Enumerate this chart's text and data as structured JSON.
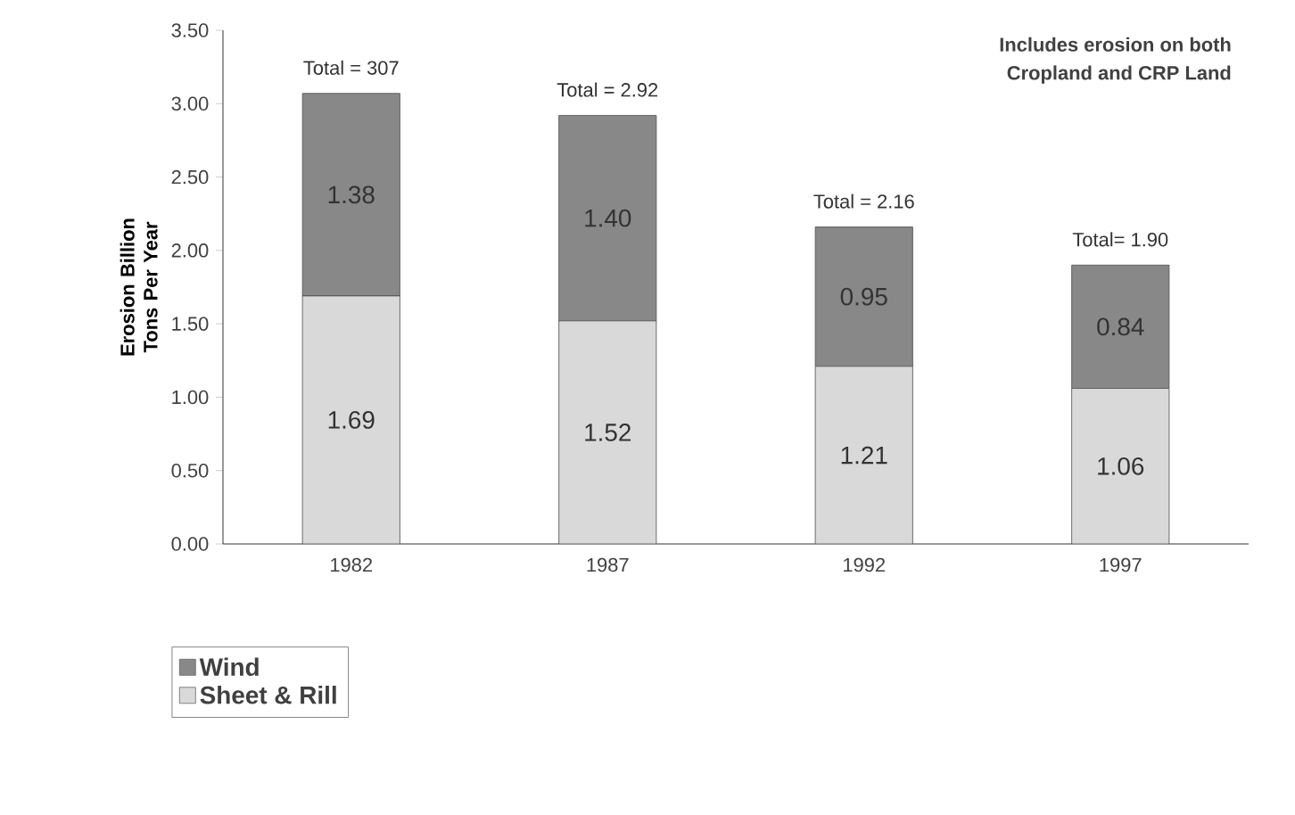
{
  "chart_data": {
    "type": "bar",
    "stacked": true,
    "ylabel": "Erosion Billion Tons Per Year",
    "categories": [
      "1982",
      "1987",
      "1992",
      "1997"
    ],
    "series": [
      {
        "name": "Sheet & Rill",
        "color": "#d9d9d9",
        "values": [
          1.69,
          1.52,
          1.21,
          1.06
        ],
        "value_labels": [
          "1.69",
          "1.52",
          "1.21",
          "1.06"
        ]
      },
      {
        "name": "Wind",
        "color": "#888888",
        "values": [
          1.38,
          1.4,
          0.95,
          0.84
        ],
        "value_labels": [
          "1.38",
          "1.40",
          "0.95",
          "0.84"
        ]
      }
    ],
    "totals": [
      "Total = 307",
      "Total = 2.92",
      "Total = 2.16",
      "Total= 1.90"
    ],
    "ylim": [
      0,
      3.5
    ],
    "yticks": [
      {
        "value": 0,
        "label": "0.00"
      },
      {
        "value": 0.5,
        "label": "0.50"
      },
      {
        "value": 1,
        "label": "1.00"
      },
      {
        "value": 1.5,
        "label": "1.50"
      },
      {
        "value": 2,
        "label": "2.00"
      },
      {
        "value": 2.5,
        "label": "2.50"
      },
      {
        "value": 3,
        "label": "3.00"
      },
      {
        "value": 3.5,
        "label": "3.50"
      }
    ],
    "annotations": [
      "Includes erosion on both",
      "Cropland and CRP Land"
    ],
    "legend": "bottom left",
    "grid": false
  }
}
